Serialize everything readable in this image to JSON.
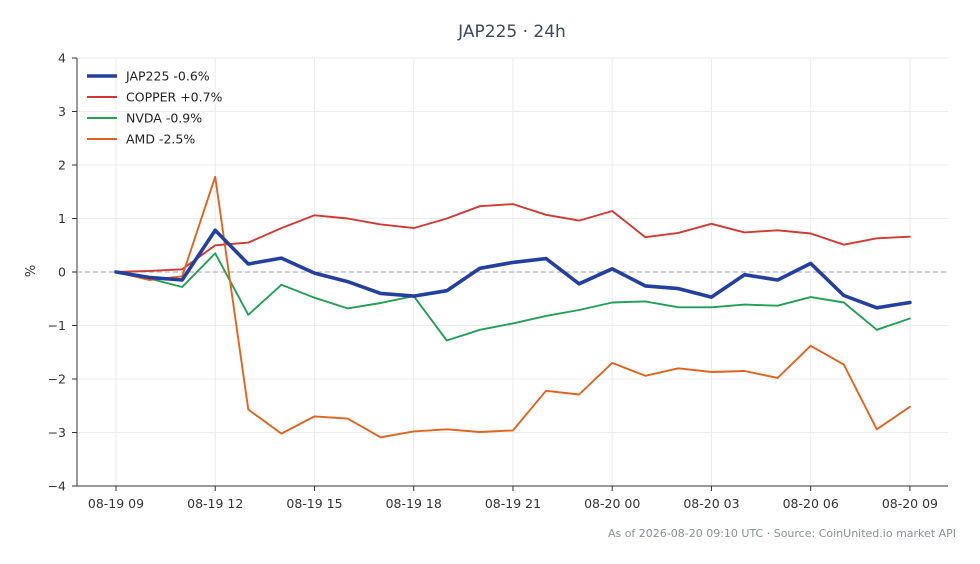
{
  "chart_data": {
    "type": "line",
    "title": "JAP225 · 24h",
    "xlabel": "",
    "ylabel": "%",
    "ylim": [
      -4,
      4
    ],
    "yticks": [
      "−4",
      "−3",
      "−2",
      "−1",
      "0",
      "1",
      "2",
      "3",
      "4"
    ],
    "ytick_values": [
      -4,
      -3,
      -2,
      -1,
      0,
      1,
      2,
      3,
      4
    ],
    "x": [
      "08-19 09",
      "08-19 10",
      "08-19 11",
      "08-19 12",
      "08-19 13",
      "08-19 14",
      "08-19 15",
      "08-19 16",
      "08-19 17",
      "08-19 18",
      "08-19 19",
      "08-19 20",
      "08-19 21",
      "08-19 22",
      "08-19 23",
      "08-20 00",
      "08-20 01",
      "08-20 02",
      "08-20 03",
      "08-20 04",
      "08-20 05",
      "08-20 06",
      "08-20 07",
      "08-20 08",
      "08-20 09"
    ],
    "xticks": [
      "08-19 09",
      "08-19 12",
      "08-19 15",
      "08-19 18",
      "08-19 21",
      "08-20 00",
      "08-20 03",
      "08-20 06",
      "08-20 09"
    ],
    "grid": true,
    "legend_position": "top-left",
    "reference_line": {
      "y": 0,
      "style": "dashed",
      "color": "#9aa5bd"
    },
    "series": [
      {
        "name": "JAP225 -0.6%",
        "color": "#2340a0",
        "emphasis": true,
        "values": [
          0.0,
          -0.1,
          -0.15,
          0.78,
          0.15,
          0.26,
          -0.02,
          -0.18,
          -0.4,
          -0.45,
          -0.35,
          0.07,
          0.18,
          0.25,
          -0.22,
          0.06,
          -0.26,
          -0.31,
          -0.47,
          -0.05,
          -0.15,
          0.16,
          -0.44,
          -0.67,
          -0.57
        ]
      },
      {
        "name": "COPPER +0.7%",
        "color": "#d03a32",
        "emphasis": false,
        "values": [
          0.0,
          0.02,
          0.05,
          0.5,
          0.55,
          0.82,
          1.06,
          1.0,
          0.89,
          0.82,
          1.0,
          1.23,
          1.27,
          1.07,
          0.96,
          1.14,
          0.65,
          0.73,
          0.9,
          0.74,
          0.78,
          0.72,
          0.51,
          0.63,
          0.66
        ]
      },
      {
        "name": "NVDA -0.9%",
        "color": "#22a055",
        "emphasis": false,
        "values": [
          0.0,
          -0.12,
          -0.28,
          0.35,
          -0.8,
          -0.24,
          -0.48,
          -0.68,
          -0.58,
          -0.45,
          -1.28,
          -1.08,
          -0.96,
          -0.82,
          -0.71,
          -0.57,
          -0.55,
          -0.66,
          -0.66,
          -0.61,
          -0.63,
          -0.47,
          -0.57,
          -1.08,
          -0.87
        ]
      },
      {
        "name": "AMD -2.5%",
        "color": "#e0631e",
        "emphasis": false,
        "values": [
          0.0,
          -0.15,
          -0.08,
          1.78,
          -2.57,
          -3.02,
          -2.7,
          -2.74,
          -3.09,
          -2.98,
          -2.94,
          -2.99,
          -2.96,
          -2.22,
          -2.29,
          -1.7,
          -1.94,
          -1.8,
          -1.87,
          -1.85,
          -1.98,
          -1.38,
          -1.73,
          -2.94,
          -2.52
        ]
      }
    ]
  },
  "footer": {
    "text": "As of 2026-08-20 09:10 UTC · Source: CoinUnited.io market API"
  }
}
